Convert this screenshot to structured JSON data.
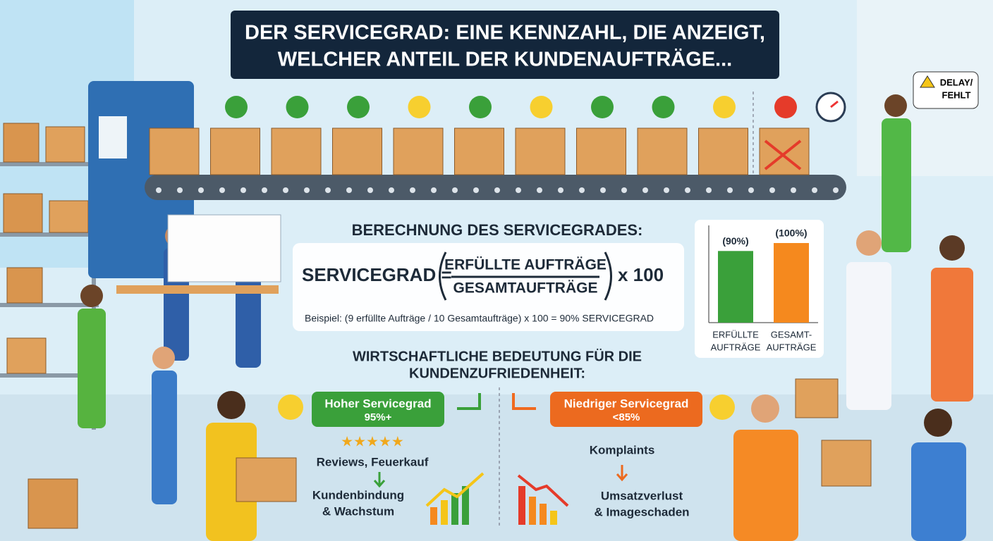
{
  "title": {
    "lines": [
      "DER SERVICEGRAD: EINE KENNZAHL, DIE ANZEIGT,",
      "WELCHER ANTEIL DER KUNDENAUFTRÄGE..."
    ]
  },
  "bubble": {
    "lines": [
      "DELAY/",
      "FEHLT"
    ]
  },
  "calculation": {
    "heading": "BERECHNUNG DES SERVICEGRADES:",
    "lhs": "SERVICEGRAD =",
    "numerator": "ERFÜLLTE AUFTRÄGE",
    "denominator": "GESAMTAUFTRÄGE",
    "multiplier": "x 100",
    "example": "Beispiel: (9 erfüllte Aufträge / 10 Gesamtaufträge) x 100 = 90% SERVICEGRAD"
  },
  "chart_data": {
    "type": "bar",
    "categories": [
      [
        "ERFÜLLTE",
        "AUFTRÄGE"
      ],
      [
        "GESAMT-",
        "AUFTRÄGE"
      ]
    ],
    "values": [
      90,
      100
    ],
    "value_labels": [
      "(90%)",
      "(100%)"
    ],
    "colors": [
      "#3aa03a",
      "#f5891e"
    ]
  },
  "importance": {
    "heading": [
      "WIRTSCHAFTLICHE BEDEUTUNG FÜR DIE",
      "KUNDENZUFRIEDENHEIT:"
    ],
    "high": {
      "label": [
        "Hoher Servicegrad",
        "95%+"
      ],
      "effect": "Reviews, Feuerkauf",
      "result": [
        "Kundenbindung",
        "& Wachstum"
      ]
    },
    "low": {
      "label": [
        "Niedriger Servicegrad",
        "<85%"
      ],
      "effect": "Komplaints",
      "result": [
        "Umsatzverlust",
        "& Imageschaden"
      ]
    }
  }
}
